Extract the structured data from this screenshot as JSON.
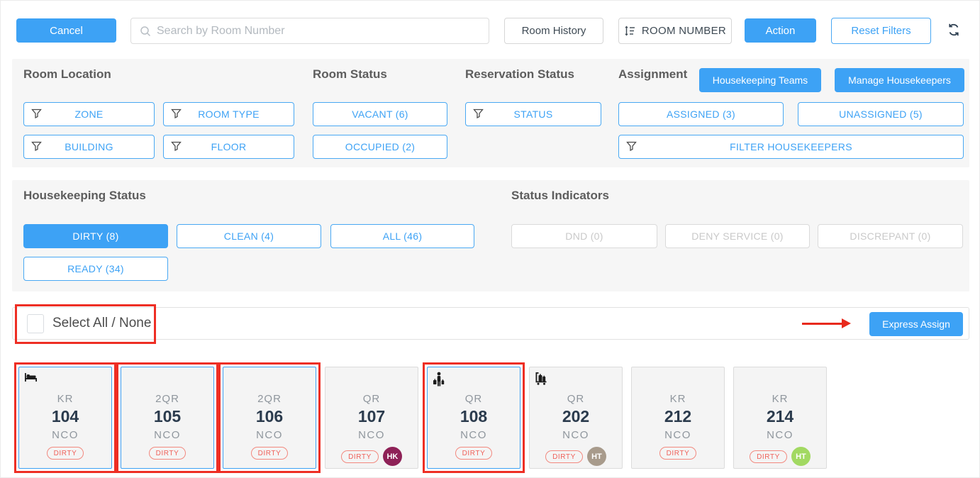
{
  "toolbar": {
    "cancel": "Cancel",
    "search_placeholder": "Search by Room Number",
    "room_history": "Room History",
    "sort_label": "ROOM NUMBER",
    "action": "Action",
    "reset_filters": "Reset Filters"
  },
  "filters": {
    "section_room_location": "Room Location",
    "zone": "ZONE",
    "room_type": "ROOM TYPE",
    "building": "BUILDING",
    "floor": "FLOOR",
    "section_room_status": "Room Status",
    "vacant": "VACANT (6)",
    "occupied": "OCCUPIED (2)",
    "section_reservation_status": "Reservation Status",
    "status": "STATUS",
    "section_assignment": "Assignment",
    "assigned": "ASSIGNED (3)",
    "unassigned": "UNASSIGNED (5)",
    "filter_housekeepers": "FILTER HOUSEKEEPERS",
    "housekeeping_teams": "Housekeeping Teams",
    "manage_housekeepers": "Manage Housekeepers"
  },
  "housekeeping_status": {
    "label": "Housekeeping Status",
    "dirty": "DIRTY (8)",
    "clean": "CLEAN (4)",
    "all": "ALL (46)",
    "ready": "READY (34)",
    "active": "DIRTY (8)"
  },
  "status_indicators": {
    "label": "Status Indicators",
    "dnd": "DND (0)",
    "deny_service": "DENY SERVICE (0)",
    "discrepant": "DISCREPANT (0)"
  },
  "select_bar": {
    "label": "Select All / None",
    "checkbox_checked": false,
    "express_assign": "Express Assign"
  },
  "rooms": [
    {
      "type": "KR",
      "number": "104",
      "reservation": "NCO",
      "status": "DIRTY",
      "icon": "bed-icon",
      "selected": true,
      "annotated": true,
      "assignee": null
    },
    {
      "type": "2QR",
      "number": "105",
      "reservation": "NCO",
      "status": "DIRTY",
      "icon": null,
      "selected": true,
      "annotated": true,
      "assignee": null
    },
    {
      "type": "2QR",
      "number": "106",
      "reservation": "NCO",
      "status": "DIRTY",
      "icon": null,
      "selected": true,
      "annotated": true,
      "assignee": null
    },
    {
      "type": "QR",
      "number": "107",
      "reservation": "NCO",
      "status": "DIRTY",
      "icon": null,
      "selected": false,
      "annotated": false,
      "assignee": {
        "initials": "HK",
        "color": "#8E2157"
      }
    },
    {
      "type": "QR",
      "number": "108",
      "reservation": "NCO",
      "status": "DIRTY",
      "icon": "guest-luggage-icon",
      "selected": true,
      "annotated": true,
      "assignee": null
    },
    {
      "type": "QR",
      "number": "202",
      "reservation": "NCO",
      "status": "DIRTY",
      "icon": "luggage-cart-icon",
      "selected": false,
      "annotated": false,
      "assignee": {
        "initials": "HT",
        "color": "#A89B8C"
      }
    },
    {
      "type": "KR",
      "number": "212",
      "reservation": "NCO",
      "status": "DIRTY",
      "icon": null,
      "selected": false,
      "annotated": false,
      "assignee": null
    },
    {
      "type": "KR",
      "number": "214",
      "reservation": "NCO",
      "status": "DIRTY",
      "icon": null,
      "selected": false,
      "annotated": false,
      "assignee": {
        "initials": "HT",
        "color": "#A2D962"
      }
    }
  ],
  "colors": {
    "accent_blue": "#3DA2F5",
    "annotation_red": "#EE2E24",
    "dirty_red": "#EF6059"
  }
}
